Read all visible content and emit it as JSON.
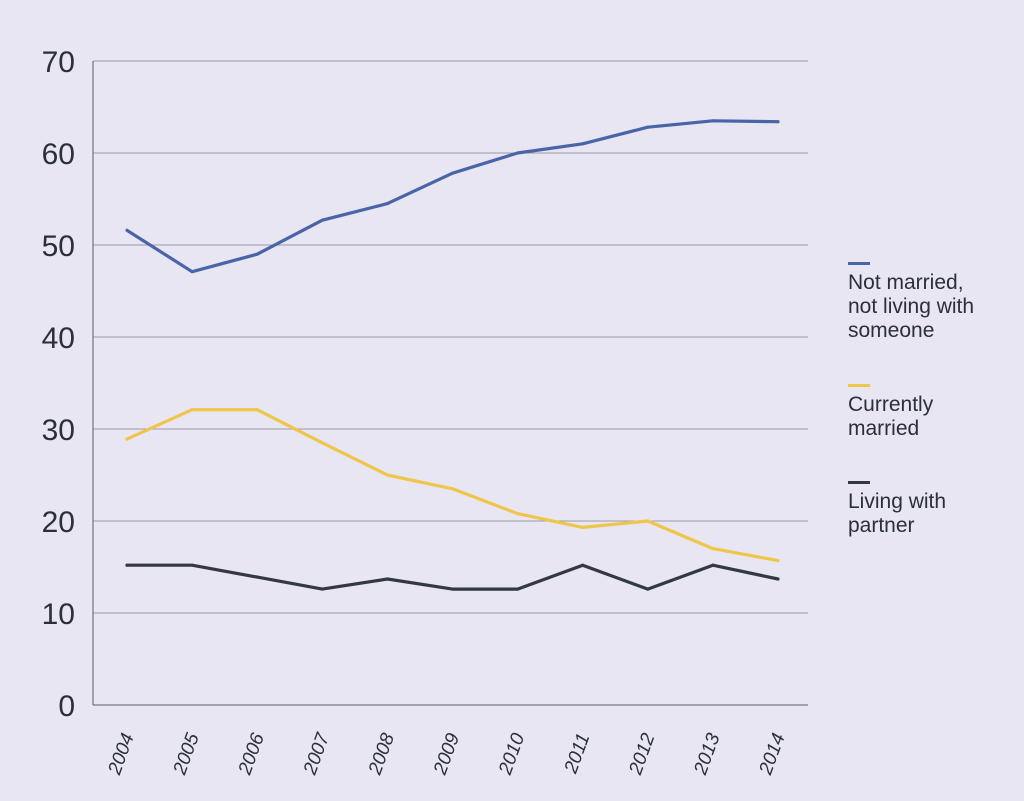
{
  "chart_data": {
    "type": "line",
    "x": [
      "2004",
      "2005",
      "2006",
      "2007",
      "2008",
      "2009",
      "2010",
      "2011",
      "2012",
      "2013",
      "2014"
    ],
    "ylim": [
      0,
      70
    ],
    "yticks": [
      0,
      10,
      20,
      30,
      40,
      50,
      60,
      70
    ],
    "grid": true,
    "legend_position": "right",
    "series": [
      {
        "name": "Not married,\nnot living with\nsomeone",
        "color": "#4a64a8",
        "values": [
          51.6,
          47.1,
          49.0,
          52.7,
          54.5,
          57.8,
          60.0,
          61.0,
          62.8,
          63.5,
          63.4
        ]
      },
      {
        "name": "Currently\nmarried",
        "color": "#eec64a",
        "values": [
          28.9,
          32.1,
          32.1,
          28.5,
          25.0,
          23.5,
          20.8,
          19.3,
          20.0,
          17.0,
          15.7
        ]
      },
      {
        "name": "Living with\npartner",
        "color": "#323844",
        "values": [
          15.2,
          15.2,
          13.9,
          12.6,
          13.7,
          12.6,
          12.6,
          15.2,
          12.6,
          15.2,
          13.7
        ]
      }
    ]
  }
}
